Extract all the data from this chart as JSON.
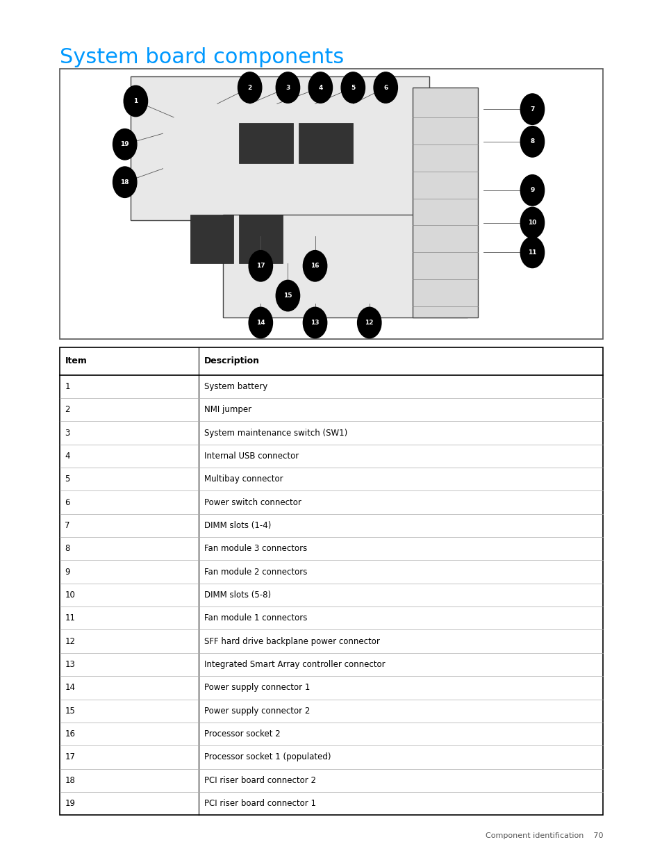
{
  "title": "System board components",
  "title_color": "#0099ff",
  "title_fontsize": 22,
  "page_background": "#ffffff",
  "table_header": [
    "Item",
    "Description"
  ],
  "table_rows": [
    [
      "1",
      "System battery"
    ],
    [
      "2",
      "NMI jumper"
    ],
    [
      "3",
      "System maintenance switch (SW1)"
    ],
    [
      "4",
      "Internal USB connector"
    ],
    [
      "5",
      "Multibay connector"
    ],
    [
      "6",
      "Power switch connector"
    ],
    [
      "7",
      "DIMM slots (1-4)"
    ],
    [
      "8",
      "Fan module 3 connectors"
    ],
    [
      "9",
      "Fan module 2 connectors"
    ],
    [
      "10",
      "DIMM slots (5-8)"
    ],
    [
      "11",
      "Fan module 1 connectors"
    ],
    [
      "12",
      "SFF hard drive backplane power connector"
    ],
    [
      "13",
      "Integrated Smart Array controller connector"
    ],
    [
      "14",
      "Power supply connector 1"
    ],
    [
      "15",
      "Power supply connector 2"
    ],
    [
      "16",
      "Processor socket 2"
    ],
    [
      "17",
      "Processor socket 1 (populated)"
    ],
    [
      "18",
      "PCI riser board connector 2"
    ],
    [
      "19",
      "PCI riser board connector 1"
    ]
  ],
  "footer_text": "Component identification    70",
  "badge_data": [
    [
      1,
      0.14,
      0.88
    ],
    [
      2,
      0.35,
      0.93
    ],
    [
      3,
      0.42,
      0.93
    ],
    [
      4,
      0.48,
      0.93
    ],
    [
      5,
      0.54,
      0.93
    ],
    [
      6,
      0.6,
      0.93
    ],
    [
      7,
      0.87,
      0.85
    ],
    [
      8,
      0.87,
      0.73
    ],
    [
      9,
      0.87,
      0.55
    ],
    [
      10,
      0.87,
      0.43
    ],
    [
      11,
      0.87,
      0.32
    ],
    [
      12,
      0.57,
      0.06
    ],
    [
      13,
      0.47,
      0.06
    ],
    [
      14,
      0.37,
      0.06
    ],
    [
      15,
      0.42,
      0.16
    ],
    [
      16,
      0.47,
      0.27
    ],
    [
      17,
      0.37,
      0.27
    ],
    [
      18,
      0.12,
      0.58
    ],
    [
      19,
      0.12,
      0.72
    ]
  ],
  "line_data": [
    [
      1,
      0.14,
      0.88,
      0.21,
      0.82
    ],
    [
      2,
      0.35,
      0.93,
      0.29,
      0.87
    ],
    [
      3,
      0.42,
      0.93,
      0.35,
      0.87
    ],
    [
      4,
      0.48,
      0.93,
      0.4,
      0.87
    ],
    [
      5,
      0.54,
      0.93,
      0.47,
      0.87
    ],
    [
      6,
      0.6,
      0.93,
      0.54,
      0.87
    ],
    [
      7,
      0.87,
      0.85,
      0.78,
      0.85
    ],
    [
      8,
      0.87,
      0.73,
      0.78,
      0.73
    ],
    [
      9,
      0.87,
      0.55,
      0.78,
      0.55
    ],
    [
      10,
      0.87,
      0.43,
      0.78,
      0.43
    ],
    [
      11,
      0.87,
      0.32,
      0.78,
      0.32
    ],
    [
      18,
      0.12,
      0.58,
      0.19,
      0.63
    ],
    [
      19,
      0.12,
      0.72,
      0.19,
      0.76
    ],
    [
      17,
      0.37,
      0.27,
      0.37,
      0.38
    ],
    [
      16,
      0.47,
      0.27,
      0.47,
      0.38
    ],
    [
      15,
      0.42,
      0.16,
      0.42,
      0.28
    ],
    [
      14,
      0.37,
      0.06,
      0.37,
      0.13
    ],
    [
      13,
      0.47,
      0.06,
      0.47,
      0.13
    ],
    [
      12,
      0.57,
      0.06,
      0.57,
      0.13
    ]
  ]
}
